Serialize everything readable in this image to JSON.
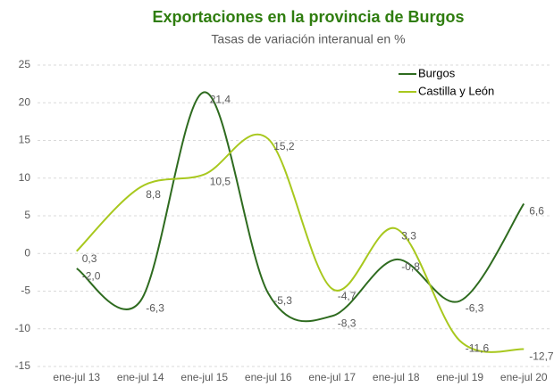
{
  "chart_data": {
    "type": "line",
    "title": "Exportaciones en la provincia de Burgos",
    "subtitle": "Tasas de variación interanual en %",
    "categories": [
      "ene-jul 13",
      "ene-jul 14",
      "ene-jul 15",
      "ene-jul 16",
      "ene-jul 17",
      "ene-jul 18",
      "ene-jul 19",
      "ene-jul 20"
    ],
    "series": [
      {
        "name": "Burgos",
        "color": "#2e6b1f",
        "values": [
          -2.0,
          -6.3,
          21.4,
          -5.3,
          -8.3,
          -0.8,
          -6.3,
          6.6
        ],
        "value_labels": [
          "-2,0",
          "-6,3",
          "21,4",
          "-5,3",
          "-8,3",
          "-0,8",
          "-6,3",
          "6,6"
        ]
      },
      {
        "name": "Castilla y León",
        "color": "#a8c81e",
        "values": [
          0.3,
          8.8,
          10.5,
          15.2,
          -4.7,
          3.3,
          -11.6,
          -12.7
        ],
        "value_labels": [
          "0,3",
          "8,8",
          "10,5",
          "15,2",
          "-4,7",
          "3,3",
          "-11,6",
          "-12,7"
        ]
      }
    ],
    "ylim": [
      -15,
      25
    ],
    "yticks": [
      -15,
      -10,
      -5,
      0,
      5,
      10,
      15,
      20,
      25
    ],
    "grid": true,
    "legend": "top-right",
    "smooth": true
  }
}
